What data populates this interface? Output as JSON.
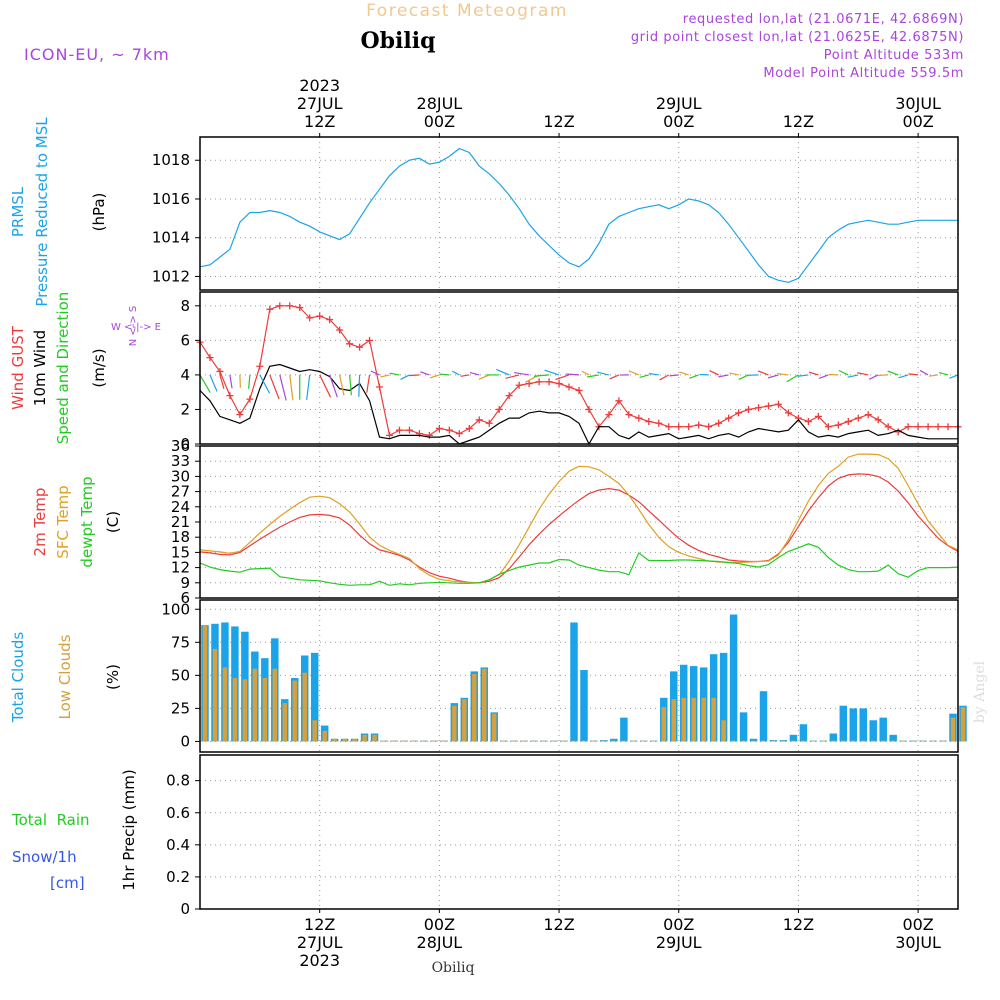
{
  "header": {
    "title_top": "Forecast Meteogram",
    "station": "Obiliq",
    "model": "ICON-EU, ~ 7km",
    "req_lonlat": "requested lon,lat (21.0671E, 42.6869N)",
    "grid_lonlat": "grid point closest lon,lat (21.0625E, 42.6875N)",
    "point_alt": "Point Altitude 533m",
    "model_alt": "Model Point Altitude 559.5m",
    "footer_station": "Obiliq",
    "credit": "by Angel"
  },
  "time_axis": {
    "top_ticks": [
      {
        "t": 12,
        "lines": [
          "2023",
          "27JUL",
          "12Z"
        ]
      },
      {
        "t": 24,
        "lines": [
          "28JUL",
          "00Z"
        ]
      },
      {
        "t": 36,
        "lines": [
          "12Z"
        ]
      },
      {
        "t": 48,
        "lines": [
          "29JUL",
          "00Z"
        ]
      },
      {
        "t": 60,
        "lines": [
          "12Z"
        ]
      },
      {
        "t": 72,
        "lines": [
          "30JUL",
          "00Z"
        ]
      }
    ],
    "bottom_ticks": [
      {
        "t": 12,
        "lines": [
          "12Z",
          "27JUL",
          "2023"
        ]
      },
      {
        "t": 24,
        "lines": [
          "00Z",
          "28JUL"
        ]
      },
      {
        "t": 36,
        "lines": [
          "12Z"
        ]
      },
      {
        "t": 48,
        "lines": [
          "00Z",
          "29JUL"
        ]
      },
      {
        "t": 60,
        "lines": [
          "12Z"
        ]
      },
      {
        "t": 72,
        "lines": [
          "00Z",
          "30JUL"
        ]
      }
    ]
  },
  "colors": {
    "prmsl": "#1aa3e8",
    "gust": "#ee3b3b",
    "wind": "#000000",
    "direction": "#22cc22",
    "temp2m": "#ee3b3b",
    "sfc": "#e0a020",
    "dewpt": "#22cc22",
    "total_clouds": "#1aa3e8",
    "low_clouds": "#d4a040",
    "rain": "#22cc22",
    "snow": "#3355ee",
    "purple": "#aa44dd",
    "title_top": "#f0c890"
  },
  "panel_labels": {
    "pressure": {
      "l1": "PRMSL",
      "l2": "Pressure Reduced to MSL",
      "unit": "(hPa)"
    },
    "wind": {
      "l1": "Wind GUST",
      "l2": "10m Wind",
      "l3": "Speed and Direction",
      "unit": "(m/s)",
      "compass_ns": "N <-> S",
      "compass_we": "W <-|-> E"
    },
    "temp": {
      "l1": "2m Temp",
      "l2": "SFC Temp",
      "l3": "dewpt Temp",
      "unit": "(C)"
    },
    "clouds": {
      "l1": "Total Clouds",
      "l2": "Low Clouds",
      "unit": "(%)"
    },
    "precip": {
      "l1": "Total  Rain",
      "l2": "Snow/1h",
      "l3": "[cm]",
      "unit": "1hr Precip (mm)"
    }
  },
  "chart_data": [
    {
      "type": "line",
      "panel": "pressure",
      "ylabel": "(hPa)",
      "ylim": [
        1011.3,
        1019.2
      ],
      "yticks": [
        1012,
        1014,
        1016,
        1018
      ],
      "x_hours": [
        0,
        1,
        2,
        3,
        4,
        5,
        6,
        7,
        8,
        9,
        10,
        11,
        12,
        13,
        14,
        15,
        16,
        17,
        18,
        19,
        20,
        21,
        22,
        23,
        24,
        25,
        26,
        27,
        28,
        29,
        30,
        31,
        32,
        33,
        34,
        35,
        36,
        37,
        38,
        39,
        40,
        41,
        42,
        43,
        44,
        45,
        46,
        47,
        48,
        49,
        50,
        51,
        52,
        53,
        54,
        55,
        56,
        57,
        58,
        59,
        60,
        61,
        62,
        63,
        64,
        65,
        66,
        67,
        68,
        69,
        70,
        71,
        72,
        73,
        74,
        75,
        76
      ],
      "series": [
        {
          "name": "PRMSL",
          "values": [
            1012.5,
            1012.6,
            1013.0,
            1013.4,
            1014.8,
            1015.3,
            1015.3,
            1015.4,
            1015.3,
            1015.1,
            1014.8,
            1014.6,
            1014.3,
            1014.1,
            1013.9,
            1014.2,
            1015.0,
            1015.8,
            1016.5,
            1017.2,
            1017.7,
            1018.0,
            1018.1,
            1017.8,
            1017.9,
            1018.2,
            1018.6,
            1018.4,
            1017.7,
            1017.3,
            1016.8,
            1016.2,
            1015.5,
            1014.7,
            1014.1,
            1013.6,
            1013.1,
            1012.7,
            1012.5,
            1012.9,
            1013.7,
            1014.7,
            1015.1,
            1015.3,
            1015.5,
            1015.6,
            1015.7,
            1015.5,
            1015.7,
            1016.0,
            1015.9,
            1015.7,
            1015.3,
            1014.7,
            1014.0,
            1013.3,
            1012.6,
            1012.0,
            1011.8,
            1011.7,
            1011.9,
            1012.6,
            1013.3,
            1014.0,
            1014.4,
            1014.7,
            1014.8,
            1014.9,
            1014.8,
            1014.7,
            1014.7,
            1014.8,
            1014.9,
            1014.9,
            1014.9,
            1014.9,
            1014.9
          ]
        }
      ]
    },
    {
      "type": "line",
      "panel": "wind",
      "ylabel": "(m/s)",
      "ylim": [
        0,
        8.8
      ],
      "yticks": [
        0,
        2,
        4,
        6,
        8
      ],
      "x_hours": [
        0,
        1,
        2,
        3,
        4,
        5,
        6,
        7,
        8,
        9,
        10,
        11,
        12,
        13,
        14,
        15,
        16,
        17,
        18,
        19,
        20,
        21,
        22,
        23,
        24,
        25,
        26,
        27,
        28,
        29,
        30,
        31,
        32,
        33,
        34,
        35,
        36,
        37,
        38,
        39,
        40,
        41,
        42,
        43,
        44,
        45,
        46,
        47,
        48,
        49,
        50,
        51,
        52,
        53,
        54,
        55,
        56,
        57,
        58,
        59,
        60,
        61,
        62,
        63,
        64,
        65,
        66,
        67,
        68,
        69,
        70,
        71,
        72,
        73,
        74,
        75,
        76
      ],
      "series": [
        {
          "name": "Wind GUST",
          "values": [
            5.9,
            5.0,
            4.2,
            2.8,
            1.7,
            2.6,
            4.5,
            7.8,
            8.0,
            8.0,
            7.9,
            7.3,
            7.4,
            7.2,
            6.6,
            5.8,
            5.6,
            6.0,
            3.3,
            0.5,
            0.8,
            0.8,
            0.6,
            0.5,
            0.9,
            0.8,
            0.6,
            0.9,
            1.4,
            1.2,
            2.0,
            2.8,
            3.4,
            3.5,
            3.6,
            3.6,
            3.5,
            3.3,
            3.1,
            2.0,
            1.0,
            1.7,
            2.5,
            1.7,
            1.5,
            1.3,
            1.2,
            1.0,
            1.0,
            1.0,
            1.1,
            1.0,
            1.2,
            1.5,
            1.8,
            2.0,
            2.1,
            2.2,
            2.3,
            1.8,
            1.5,
            1.3,
            1.6,
            1.0,
            1.1,
            1.3,
            1.5,
            1.7,
            1.4,
            1.0,
            0.7,
            1.0,
            1.0,
            1.0,
            1.0,
            1.0,
            1.0
          ]
        },
        {
          "name": "10m Wind",
          "values": [
            3.1,
            2.5,
            1.6,
            1.4,
            1.2,
            1.5,
            3.2,
            4.5,
            4.6,
            4.4,
            4.2,
            4.3,
            4.2,
            3.9,
            3.2,
            3.1,
            3.5,
            2.5,
            0.4,
            0.3,
            0.5,
            0.5,
            0.5,
            0.4,
            0.4,
            0.5,
            0.0,
            0.2,
            0.4,
            0.8,
            1.2,
            1.5,
            1.5,
            1.8,
            1.9,
            1.8,
            1.8,
            1.6,
            1.2,
            0.0,
            1.0,
            1.0,
            0.5,
            0.3,
            0.7,
            0.4,
            0.5,
            0.6,
            0.3,
            0.4,
            0.5,
            0.3,
            0.5,
            0.6,
            0.4,
            0.7,
            0.9,
            0.8,
            0.7,
            0.8,
            1.4,
            0.7,
            0.4,
            0.5,
            0.4,
            0.6,
            0.7,
            0.8,
            0.5,
            0.6,
            0.8,
            0.5,
            0.4,
            0.3,
            0.3,
            0.3,
            0.3
          ]
        }
      ]
    },
    {
      "type": "line",
      "panel": "temp",
      "ylabel": "(C)",
      "ylim": [
        6,
        36
      ],
      "yticks": [
        6,
        9,
        12,
        15,
        18,
        21,
        24,
        27,
        30,
        33,
        36
      ],
      "x_hours": [
        0,
        1,
        2,
        3,
        4,
        5,
        6,
        7,
        8,
        9,
        10,
        11,
        12,
        13,
        14,
        15,
        16,
        17,
        18,
        19,
        20,
        21,
        22,
        23,
        24,
        25,
        26,
        27,
        28,
        29,
        30,
        31,
        32,
        33,
        34,
        35,
        36,
        37,
        38,
        39,
        40,
        41,
        42,
        43,
        44,
        45,
        46,
        47,
        48,
        49,
        50,
        51,
        52,
        53,
        54,
        55,
        56,
        57,
        58,
        59,
        60,
        61,
        62,
        63,
        64,
        65,
        66,
        67,
        68,
        69,
        70,
        71,
        72,
        73,
        74,
        75,
        76
      ],
      "series": [
        {
          "name": "2m Temp",
          "values": [
            15.1,
            14.9,
            14.6,
            14.5,
            15.0,
            16.3,
            17.6,
            18.8,
            20.0,
            21.0,
            21.9,
            22.4,
            22.5,
            22.3,
            21.8,
            20.4,
            18.4,
            16.7,
            15.5,
            15.0,
            14.4,
            13.5,
            12.1,
            11.0,
            10.3,
            9.9,
            9.4,
            9.1,
            9.0,
            9.3,
            10.0,
            11.8,
            14.1,
            16.5,
            18.6,
            20.5,
            22.2,
            23.8,
            25.3,
            26.6,
            27.3,
            27.6,
            27.3,
            26.3,
            25.0,
            23.2,
            21.4,
            19.5,
            17.8,
            16.4,
            15.4,
            14.6,
            14.1,
            13.5,
            13.3,
            13.2,
            13.2,
            13.4,
            14.7,
            17.0,
            20.1,
            23.2,
            25.8,
            28.1,
            29.6,
            30.3,
            30.5,
            30.4,
            30.0,
            28.9,
            27.1,
            24.8,
            22.2,
            20.0,
            17.8,
            16.3,
            15.2
          ]
        },
        {
          "name": "SFC Temp",
          "values": [
            15.5,
            15.3,
            15.1,
            14.8,
            15.2,
            17.0,
            18.8,
            20.5,
            22.1,
            23.5,
            24.8,
            25.9,
            26.1,
            25.8,
            24.6,
            23.0,
            20.6,
            18.0,
            16.4,
            15.4,
            14.6,
            13.8,
            11.8,
            10.5,
            9.7,
            9.4,
            9.2,
            9.1,
            9.0,
            9.6,
            10.6,
            13.3,
            16.5,
            20.0,
            23.5,
            26.5,
            29.0,
            31.0,
            32.0,
            31.9,
            31.3,
            30.0,
            28.6,
            26.3,
            23.5,
            20.5,
            18.0,
            16.1,
            15.0,
            14.3,
            13.8,
            13.3,
            13.1,
            13.0,
            13.0,
            13.1,
            13.2,
            13.3,
            14.5,
            17.5,
            21.3,
            25.1,
            28.2,
            30.6,
            32.0,
            33.8,
            34.4,
            34.4,
            34.3,
            33.5,
            31.6,
            28.2,
            24.6,
            21.2,
            18.8,
            16.4,
            15.5
          ]
        },
        {
          "name": "dewpt Temp",
          "values": [
            12.9,
            12.1,
            11.6,
            11.3,
            11.1,
            11.7,
            11.8,
            11.9,
            10.2,
            9.9,
            9.6,
            9.5,
            9.4,
            9.0,
            8.7,
            8.5,
            8.6,
            8.6,
            9.3,
            8.5,
            8.8,
            8.6,
            8.9,
            9.0,
            9.1,
            9.0,
            8.9,
            8.9,
            9.0,
            9.6,
            10.7,
            11.4,
            12.1,
            12.5,
            12.9,
            12.9,
            13.6,
            13.5,
            12.5,
            12.0,
            11.5,
            11.2,
            11.2,
            10.6,
            14.9,
            13.4,
            13.4,
            13.4,
            13.5,
            13.5,
            13.4,
            13.3,
            13.2,
            13.0,
            12.8,
            12.4,
            12.1,
            12.6,
            14.0,
            15.2,
            15.9,
            16.7,
            16.0,
            14.0,
            12.5,
            11.6,
            11.2,
            11.2,
            11.3,
            12.5,
            10.8,
            10.1,
            11.4,
            12.0,
            12.0,
            12.0,
            12.1
          ]
        }
      ]
    },
    {
      "type": "bar",
      "panel": "clouds",
      "ylabel": "(%)",
      "ylim": [
        -8,
        107
      ],
      "yticks": [
        0,
        25,
        50,
        75,
        100
      ],
      "x_hours": [
        0,
        1,
        2,
        3,
        4,
        5,
        6,
        7,
        8,
        9,
        10,
        11,
        12,
        13,
        14,
        15,
        16,
        17,
        18,
        19,
        20,
        21,
        22,
        23,
        24,
        25,
        26,
        27,
        28,
        29,
        30,
        31,
        32,
        33,
        34,
        35,
        36,
        37,
        38,
        39,
        40,
        41,
        42,
        43,
        44,
        45,
        46,
        47,
        48,
        49,
        50,
        51,
        52,
        53,
        54,
        55,
        56,
        57,
        58,
        59,
        60,
        61,
        62,
        63,
        64,
        65,
        66,
        67,
        68,
        69,
        70,
        71,
        72,
        73,
        74,
        75,
        76
      ],
      "series": [
        {
          "name": "Total Clouds",
          "values": [
            88,
            89,
            90,
            87,
            83,
            68,
            63,
            78,
            32,
            48,
            65,
            67,
            12,
            2,
            2,
            2,
            6,
            6,
            0,
            0,
            0,
            0,
            0,
            0,
            0,
            29,
            33,
            53,
            56,
            22,
            0,
            0,
            0,
            0,
            0,
            0,
            0,
            90,
            54,
            0,
            1,
            2,
            18,
            0,
            0,
            0,
            33,
            53,
            58,
            57,
            56,
            66,
            67,
            96,
            22,
            2,
            38,
            1,
            1,
            5,
            13,
            0,
            0,
            6,
            27,
            25,
            25,
            16,
            18,
            5,
            0,
            0,
            0,
            0,
            0,
            21,
            27
          ]
        },
        {
          "name": "Low Clouds",
          "values": [
            88,
            70,
            56,
            48,
            47,
            55,
            48,
            55,
            29,
            46,
            52,
            16,
            8,
            2,
            2,
            2,
            5,
            5,
            0,
            0,
            0,
            0,
            0,
            0,
            0,
            27,
            32,
            51,
            55,
            21,
            0,
            0,
            0,
            0,
            0,
            0,
            0,
            0,
            0,
            0,
            0,
            0,
            0,
            0,
            0,
            0,
            26,
            32,
            33,
            33,
            33,
            33,
            16,
            0,
            0,
            0,
            0,
            0,
            0,
            0,
            0,
            0,
            0,
            0,
            0,
            0,
            0,
            0,
            0,
            0,
            0,
            0,
            0,
            0,
            0,
            18,
            26
          ]
        }
      ]
    },
    {
      "type": "line",
      "panel": "precip",
      "ylabel": "1hr Precip (mm)",
      "ylim": [
        0,
        0.96
      ],
      "yticks": [
        0,
        0.2,
        0.4,
        0.6,
        0.8
      ],
      "x_hours": [
        0,
        76
      ],
      "series": [
        {
          "name": "Total Rain",
          "values": [
            0,
            0
          ]
        },
        {
          "name": "Snow/1h",
          "values": [
            0,
            0
          ]
        }
      ]
    }
  ]
}
